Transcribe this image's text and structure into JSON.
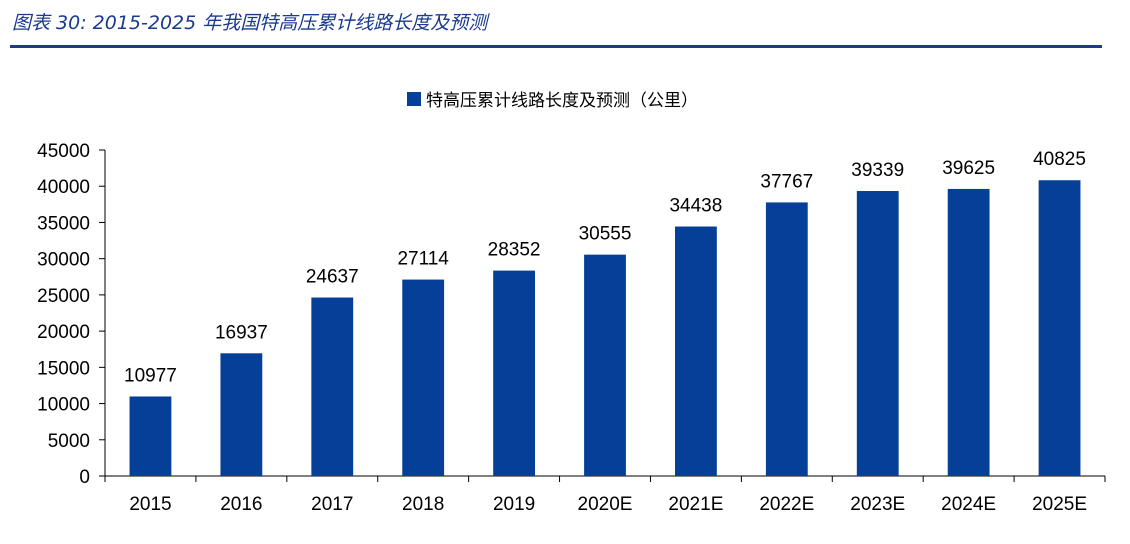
{
  "header": {
    "title": "图表 30:  2015-2025 年我国特高压累计线路长度及预测"
  },
  "colors": {
    "bar": "#063f98",
    "header": "#1a3a8f",
    "axis": "#000000"
  },
  "chart_data": {
    "type": "bar",
    "categories": [
      "2015",
      "2016",
      "2017",
      "2018",
      "2019",
      "2020E",
      "2021E",
      "2022E",
      "2023E",
      "2024E",
      "2025E"
    ],
    "series": [
      {
        "name": "特高压累计线路长度及预测（公里）",
        "values": [
          10977,
          16937,
          24637,
          27114,
          28352,
          30555,
          34438,
          37767,
          39339,
          39625,
          40825
        ]
      }
    ],
    "ylim": [
      0,
      45000
    ],
    "yticks": [
      0,
      5000,
      10000,
      15000,
      20000,
      25000,
      30000,
      35000,
      40000,
      45000
    ],
    "legend_position": "top-center",
    "grid": false
  }
}
